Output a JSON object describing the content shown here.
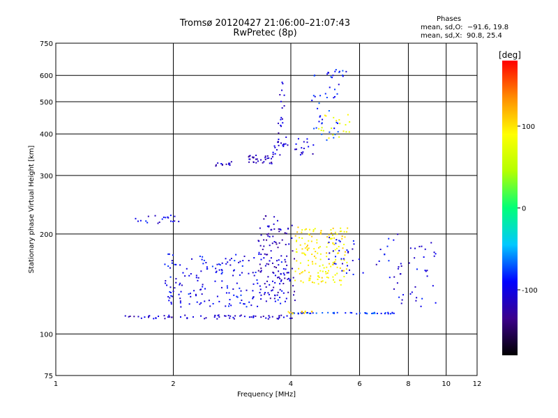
{
  "chart_data": {
    "type": "scatter",
    "title": "Tromsø 20120427 21:06:00–21:07:43",
    "subtitle": "RwPretec (8p)",
    "xlabel": "Frequency [MHz]",
    "ylabel": "Stationary phase Virtual Height [km]",
    "x_scale": "log",
    "y_scale": "log",
    "xlim": [
      1,
      12
    ],
    "ylim": [
      75,
      750
    ],
    "x_ticks": [
      1,
      2,
      4,
      6,
      8,
      10,
      12
    ],
    "y_ticks": [
      75,
      100,
      200,
      300,
      400,
      500,
      600,
      750
    ],
    "x_gridlines": [
      2,
      4,
      6,
      8,
      10
    ],
    "y_gridlines": [
      100,
      200,
      300,
      400,
      500,
      600
    ],
    "grid": true,
    "phases": {
      "heading": "Phases",
      "line1": "mean, sd,O:  −91.6, 19.8",
      "line2": "mean, sd,X:  90.8, 25.4"
    },
    "colorbar": {
      "label": "[deg]",
      "range": [
        -180,
        180
      ],
      "ticks": [
        -100,
        0,
        100
      ],
      "colors": [
        "#000000",
        "#3c008c",
        "#0000ff",
        "#00c8ff",
        "#00ff78",
        "#b4ff00",
        "#ffff00",
        "#ff8c00",
        "#ff0000"
      ]
    },
    "series": [
      {
        "segments": [
          {
            "x": [
              1.6,
              2.1
            ],
            "y": [
              215,
              228
            ],
            "phase": -100,
            "n": 20
          },
          {
            "x": [
              2.55,
              2.85
            ],
            "y": [
              320,
              330
            ],
            "phase": -110,
            "n": 12
          },
          {
            "x": [
              3.1,
              3.6
            ],
            "y": [
              325,
              345
            ],
            "phase": -115,
            "n": 30
          },
          {
            "x": [
              3.6,
              4.6
            ],
            "y": [
              345,
              395
            ],
            "phase": -105,
            "n": 28
          },
          {
            "x": [
              4.5,
              5.3
            ],
            "y": [
              380,
              620
            ],
            "phase": -85,
            "n": 36
          },
          {
            "x": [
              5.0,
              5.7
            ],
            "y": [
              520,
              630
            ],
            "phase": -90,
            "n": 12
          },
          {
            "x": [
              4.6,
              5.7
            ],
            "y": [
              385,
              460
            ],
            "phase": 80,
            "n": 20
          },
          {
            "x": [
              1.5,
              4.1
            ],
            "y": [
              111,
              114
            ],
            "phase": -110,
            "n": 70
          },
          {
            "x": [
              4.0,
              7.5
            ],
            "y": [
              115,
              116
            ],
            "phase": -80,
            "n": 50
          },
          {
            "x": [
              3.9,
              4.6
            ],
            "y": [
              115,
              117
            ],
            "phase": 100,
            "n": 12
          },
          {
            "x": [
              1.9,
              3.8
            ],
            "y": [
              120,
              175
            ],
            "phase": -95,
            "n": 180
          },
          {
            "x": [
              3.3,
              4.1
            ],
            "y": [
              125,
              230
            ],
            "phase": -115,
            "n": 120
          },
          {
            "x": [
              4.1,
              5.6
            ],
            "y": [
              140,
              210
            ],
            "phase": 95,
            "n": 160
          },
          {
            "x": [
              5.0,
              6.2
            ],
            "y": [
              150,
              200
            ],
            "phase": -100,
            "n": 30
          },
          {
            "x": [
              6.6,
              9.4
            ],
            "y": [
              120,
              200
            ],
            "phase": -100,
            "n": 50
          },
          {
            "x": [
              3.7,
              3.9
            ],
            "y": [
              360,
              580
            ],
            "phase": -110,
            "n": 24
          }
        ]
      }
    ]
  }
}
